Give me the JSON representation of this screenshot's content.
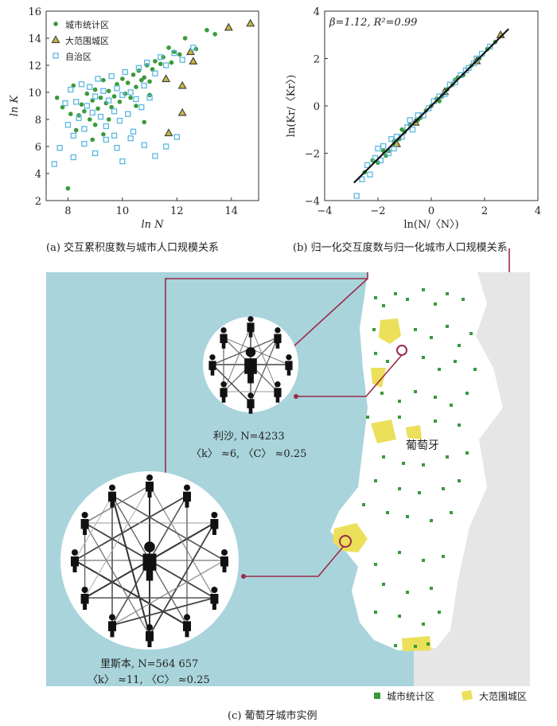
{
  "chart_data": [
    {
      "type": "scatter",
      "panel": "a",
      "xlabel": "ln N",
      "ylabel": "ln K",
      "xlim": [
        7.2,
        15
      ],
      "ylim": [
        2,
        16
      ],
      "xticks": [
        "8",
        "10",
        "12",
        "14"
      ],
      "yticks": [
        "2",
        "4",
        "6",
        "8",
        "10",
        "12",
        "14",
        "16"
      ],
      "legend": [
        "城市统计区",
        "大范围城区",
        "自治区"
      ],
      "legend_position": "top-left",
      "series": [
        {
          "name": "城市统计区",
          "marker": "circle",
          "color": "#3a9a3a",
          "points": [
            [
              7.6,
              9.6
            ],
            [
              7.8,
              8.9
            ],
            [
              8.0,
              2.9
            ],
            [
              8.1,
              8.4
            ],
            [
              8.2,
              10.5
            ],
            [
              8.4,
              8.3
            ],
            [
              8.5,
              9.1
            ],
            [
              8.6,
              8.6
            ],
            [
              8.7,
              9.9
            ],
            [
              8.8,
              8.0
            ],
            [
              8.9,
              9.4
            ],
            [
              9.0,
              10.2
            ],
            [
              9.1,
              8.8
            ],
            [
              9.2,
              9.6
            ],
            [
              9.3,
              10.9
            ],
            [
              9.4,
              9.2
            ],
            [
              9.5,
              10.1
            ],
            [
              9.6,
              8.9
            ],
            [
              9.7,
              9.7
            ],
            [
              9.8,
              10.6
            ],
            [
              9.9,
              9.3
            ],
            [
              10.0,
              11.0
            ],
            [
              10.1,
              9.9
            ],
            [
              10.2,
              10.7
            ],
            [
              10.3,
              9.6
            ],
            [
              10.4,
              11.3
            ],
            [
              10.5,
              10.4
            ],
            [
              10.6,
              11.6
            ],
            [
              10.7,
              10.9
            ],
            [
              10.8,
              11.1
            ],
            [
              10.9,
              12.0
            ],
            [
              11.0,
              10.8
            ],
            [
              11.1,
              11.7
            ],
            [
              11.2,
              12.3
            ],
            [
              11.4,
              12.1
            ],
            [
              11.5,
              12.6
            ],
            [
              11.7,
              13.3
            ],
            [
              11.8,
              12.2
            ],
            [
              11.9,
              13.0
            ],
            [
              12.1,
              12.8
            ],
            [
              12.3,
              14.0
            ],
            [
              12.7,
              13.2
            ],
            [
              13.1,
              14.6
            ],
            [
              13.4,
              14.3
            ],
            [
              9.0,
              7.6
            ],
            [
              9.5,
              8.0
            ],
            [
              8.3,
              7.2
            ],
            [
              10.5,
              9.0
            ],
            [
              11.0,
              9.8
            ],
            [
              8.9,
              6.5
            ],
            [
              9.3,
              6.9
            ],
            [
              10.8,
              7.8
            ]
          ]
        },
        {
          "name": "大范围城区",
          "marker": "triangle",
          "color": "#444444",
          "points": [
            [
              11.6,
              11.0
            ],
            [
              11.7,
              7.0
            ],
            [
              12.2,
              10.5
            ],
            [
              12.5,
              13.0
            ],
            [
              12.6,
              12.3
            ],
            [
              13.9,
              14.8
            ],
            [
              14.7,
              15.1
            ],
            [
              12.2,
              8.5
            ]
          ]
        },
        {
          "name": "自治区",
          "marker": "square",
          "color": "#5bb8e0",
          "points": [
            [
              7.5,
              4.7
            ],
            [
              7.7,
              5.9
            ],
            [
              7.9,
              9.2
            ],
            [
              8.0,
              7.6
            ],
            [
              8.1,
              10.2
            ],
            [
              8.2,
              6.8
            ],
            [
              8.3,
              9.3
            ],
            [
              8.4,
              8.1
            ],
            [
              8.5,
              10.6
            ],
            [
              8.6,
              7.3
            ],
            [
              8.7,
              9.0
            ],
            [
              8.8,
              10.4
            ],
            [
              8.9,
              8.5
            ],
            [
              9.0,
              9.7
            ],
            [
              9.1,
              11.0
            ],
            [
              9.2,
              8.2
            ],
            [
              9.3,
              10.1
            ],
            [
              9.4,
              7.5
            ],
            [
              9.5,
              9.4
            ],
            [
              9.6,
              11.2
            ],
            [
              9.7,
              8.6
            ],
            [
              9.8,
              10.3
            ],
            [
              9.9,
              7.9
            ],
            [
              10.0,
              9.8
            ],
            [
              10.1,
              11.5
            ],
            [
              10.2,
              8.4
            ],
            [
              10.3,
              10.0
            ],
            [
              10.4,
              7.1
            ],
            [
              10.5,
              9.5
            ],
            [
              10.6,
              11.8
            ],
            [
              10.7,
              8.9
            ],
            [
              10.8,
              10.5
            ],
            [
              10.9,
              12.2
            ],
            [
              11.0,
              9.6
            ],
            [
              11.2,
              11.4
            ],
            [
              11.4,
              12.6
            ],
            [
              11.6,
              12.0
            ],
            [
              11.9,
              12.9
            ],
            [
              12.2,
              12.4
            ],
            [
              12.6,
              13.3
            ],
            [
              8.6,
              6.2
            ],
            [
              9.0,
              5.5
            ],
            [
              9.4,
              6.5
            ],
            [
              9.8,
              5.9
            ],
            [
              10.3,
              6.6
            ],
            [
              10.8,
              6.1
            ],
            [
              11.2,
              5.3
            ],
            [
              11.6,
              6.0
            ],
            [
              12.0,
              6.7
            ],
            [
              8.2,
              5.2
            ],
            [
              9.7,
              6.8
            ],
            [
              10.0,
              4.9
            ]
          ]
        }
      ]
    },
    {
      "type": "scatter",
      "panel": "b",
      "annotation": "β=1.12, R²=0.99",
      "xlim": [
        -4,
        4
      ],
      "ylim": [
        -4,
        4
      ],
      "xticks": [
        "−4",
        "−2",
        "0",
        "2",
        "4"
      ],
      "yticks": [
        "−4",
        "−2",
        "0",
        "2",
        "4"
      ],
      "fit": {
        "slope": 1.12,
        "intercept": 0,
        "x_range": [
          -2.9,
          2.9
        ],
        "color": "#111111"
      },
      "series": [
        {
          "name": "城市统计区",
          "marker": "circle",
          "color": "#3a9a3a",
          "points": [
            [
              -2.5,
              -2.8
            ],
            [
              -2.2,
              -2.3
            ],
            [
              -2.0,
              -2.4
            ],
            [
              -1.8,
              -1.9
            ],
            [
              -1.6,
              -1.9
            ],
            [
              -1.4,
              -1.5
            ],
            [
              -1.2,
              -1.4
            ],
            [
              -1.0,
              -1.1
            ],
            [
              -0.8,
              -0.8
            ],
            [
              -0.6,
              -0.7
            ],
            [
              -0.4,
              -0.5
            ],
            [
              -0.2,
              -0.2
            ],
            [
              0.0,
              0.0
            ],
            [
              0.2,
              0.3
            ],
            [
              0.4,
              0.4
            ],
            [
              0.6,
              0.7
            ],
            [
              0.8,
              0.9
            ],
            [
              1.0,
              1.2
            ],
            [
              1.2,
              1.3
            ],
            [
              1.5,
              1.7
            ],
            [
              1.8,
              2.0
            ],
            [
              2.1,
              2.4
            ],
            [
              2.4,
              2.7
            ],
            [
              -1.7,
              -2.1
            ],
            [
              -1.1,
              -1.0
            ],
            [
              -0.5,
              -0.6
            ],
            [
              0.3,
              0.2
            ],
            [
              0.9,
              1.1
            ]
          ]
        },
        {
          "name": "大范围城区",
          "marker": "triangle",
          "color": "#444444",
          "points": [
            [
              -1.3,
              -1.6
            ],
            [
              -0.6,
              -0.7
            ],
            [
              0.5,
              0.6
            ],
            [
              1.7,
              1.9
            ],
            [
              2.6,
              3.0
            ]
          ]
        },
        {
          "name": "自治区",
          "marker": "square",
          "color": "#5bb8e0",
          "points": [
            [
              -2.8,
              -3.8
            ],
            [
              -2.6,
              -3.1
            ],
            [
              -2.4,
              -2.5
            ],
            [
              -2.3,
              -2.9
            ],
            [
              -2.1,
              -2.2
            ],
            [
              -1.9,
              -2.3
            ],
            [
              -1.8,
              -1.7
            ],
            [
              -1.6,
              -2.0
            ],
            [
              -1.5,
              -1.4
            ],
            [
              -1.3,
              -1.3
            ],
            [
              -1.1,
              -1.3
            ],
            [
              -0.9,
              -0.9
            ],
            [
              -0.7,
              -1.0
            ],
            [
              -0.5,
              -0.4
            ],
            [
              -0.3,
              -0.4
            ],
            [
              -0.1,
              -0.1
            ],
            [
              0.1,
              0.2
            ],
            [
              0.3,
              0.4
            ],
            [
              0.5,
              0.5
            ],
            [
              0.7,
              0.9
            ],
            [
              0.9,
              1.0
            ],
            [
              1.1,
              1.3
            ],
            [
              1.3,
              1.5
            ],
            [
              1.6,
              1.8
            ],
            [
              1.9,
              2.2
            ],
            [
              2.2,
              2.5
            ],
            [
              -2.0,
              -1.8
            ],
            [
              -1.4,
              -1.8
            ],
            [
              -0.8,
              -0.6
            ],
            [
              1.4,
              1.6
            ],
            [
              1.7,
              2.0
            ]
          ]
        }
      ]
    }
  ],
  "labels": {
    "a_xlabel": "ln N",
    "a_ylabel": "ln K",
    "b_ylabel": "ln(Kr/〈Kr〉)",
    "b_xlabel": "ln(N/〈N〉)",
    "a_legend": [
      "城市统计区",
      "大范围城区",
      "自治区"
    ]
  },
  "captions": {
    "a": "(a) 交互累积度数与城市人口规模关系",
    "b": "(b) 归一化交互度数与归一化城市人口规模关系",
    "c": "(c) 葡萄牙城市实例"
  },
  "map": {
    "country_label": "葡萄牙",
    "city1": {
      "name_line": "利沙, N=4233",
      "stats_line": "〈k〉 ≈6, 〈C〉 ≈0.25",
      "nodes": 8
    },
    "city2": {
      "name_line": "里斯本, N=564 657",
      "stats_line": "〈k〉 ≈11, 〈C〉 ≈0.25",
      "nodes": 12
    },
    "legend": {
      "item1": "城市统计区",
      "item2": "大范围城区"
    },
    "colors": {
      "sea": "#a9d4dc",
      "land": "#ffffff",
      "spain": "#e6e6e6",
      "urban": "#3a9a3a",
      "metro": "#ecdf5a",
      "link": "#9b2a48"
    }
  }
}
